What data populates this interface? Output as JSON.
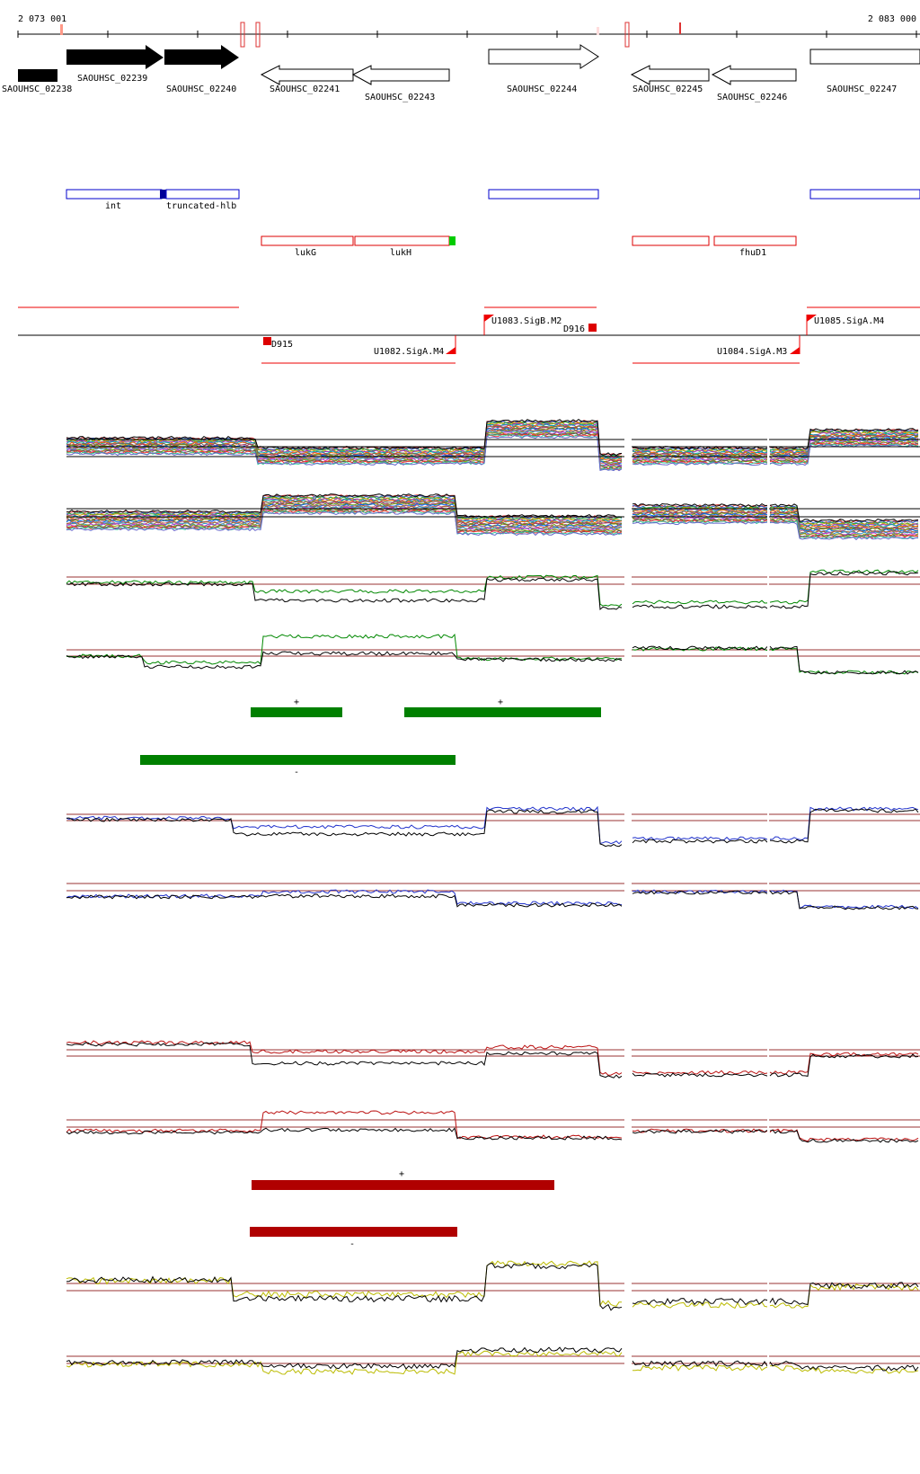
{
  "ruler": {
    "start_label": "2 073 001",
    "end_label": "2 083 000"
  },
  "genes": [
    {
      "label": "SAOUHSC_02238",
      "strand": "+",
      "filled": true
    },
    {
      "label": "SAOUHSC_02239",
      "strand": "+",
      "filled": true
    },
    {
      "label": "SAOUHSC_02240",
      "strand": "+",
      "filled": true
    },
    {
      "label": "SAOUHSC_02241",
      "strand": "-",
      "filled": false
    },
    {
      "label": "SAOUHSC_02243",
      "strand": "-",
      "filled": false
    },
    {
      "label": "SAOUHSC_02244",
      "strand": "+",
      "filled": false
    },
    {
      "label": "SAOUHSC_02245",
      "strand": "-",
      "filled": false
    },
    {
      "label": "SAOUHSC_02246",
      "strand": "-",
      "filled": false
    },
    {
      "label": "SAOUHSC_02247",
      "strand": "+",
      "filled": false
    }
  ],
  "features": [
    {
      "label": "int",
      "track": "blue"
    },
    {
      "label": "truncated-hlb",
      "track": "blue"
    },
    {
      "label": "lukG",
      "track": "red"
    },
    {
      "label": "lukH",
      "track": "red"
    },
    {
      "label": "fhuD1",
      "track": "red"
    }
  ],
  "transcription_units": [
    {
      "label": "U1082.SigA.M4",
      "strand": "-"
    },
    {
      "label": "U1083.SigB.M2",
      "strand": "+"
    },
    {
      "label": "U1084.SigA.M3",
      "strand": "-"
    },
    {
      "label": "U1085.SigA.M4",
      "strand": "+"
    }
  ],
  "terminators": [
    {
      "label": "D915"
    },
    {
      "label": "D916"
    }
  ],
  "segment_tracks": [
    {
      "color": "#008000",
      "bars": [
        {
          "label": "+"
        },
        {
          "label": "+"
        }
      ]
    },
    {
      "color": "#008000",
      "bars": [
        {
          "label": "-"
        }
      ]
    },
    {
      "color": "#b00000",
      "bars": [
        {
          "label": "+"
        }
      ]
    },
    {
      "color": "#b00000",
      "bars": [
        {
          "label": "-"
        }
      ]
    }
  ],
  "colors": {
    "gene_filled": "#000000",
    "feature_blue": "#0000cc",
    "feature_red": "#dd0000",
    "feature_green_marker": "#00cc00",
    "tu_red": "#ee0000",
    "green_profile": "#008800",
    "blue_profile": "#2233cc",
    "red_profile": "#bb1111",
    "yellow_profile": "#bbbb00",
    "threshold_line": "#993333"
  }
}
